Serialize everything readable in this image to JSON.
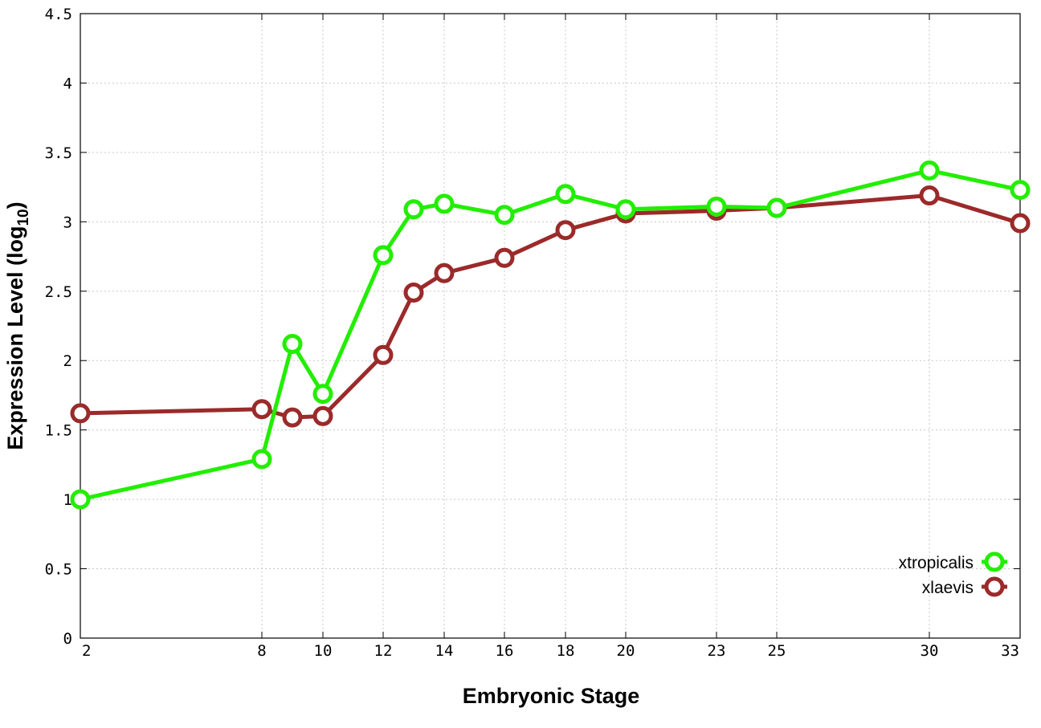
{
  "chart_data": {
    "type": "line",
    "xlabel": "Embryonic Stage",
    "ylabel_main": "Expression Level (log",
    "ylabel_sub": "10",
    "ylabel_close": ")",
    "x_ticks": [
      "2",
      "8",
      "10",
      "12",
      "14",
      "16",
      "18",
      "20",
      "23",
      "25",
      "30",
      "33"
    ],
    "y_ticks": [
      "0",
      "0.5",
      "1",
      "1.5",
      "2",
      "2.5",
      "3",
      "3.5",
      "4",
      "4.5"
    ],
    "ylim": [
      0,
      4.5
    ],
    "grid": true,
    "legend_position": "bottom-right",
    "series": [
      {
        "name": "xtropicalis",
        "color": "#22ee00",
        "points": [
          {
            "x": "2",
            "y": 1.0
          },
          {
            "x": "8",
            "y": 1.29
          },
          {
            "x": "9",
            "y": 2.12
          },
          {
            "x": "10",
            "y": 1.76
          },
          {
            "x": "12",
            "y": 2.76
          },
          {
            "x": "13",
            "y": 3.09
          },
          {
            "x": "14",
            "y": 3.13
          },
          {
            "x": "16",
            "y": 3.05
          },
          {
            "x": "18",
            "y": 3.2
          },
          {
            "x": "20",
            "y": 3.09
          },
          {
            "x": "23",
            "y": 3.11
          },
          {
            "x": "25",
            "y": 3.1
          },
          {
            "x": "30",
            "y": 3.37
          },
          {
            "x": "33",
            "y": 3.23
          }
        ]
      },
      {
        "name": "xlaevis",
        "color": "#9b2a2a",
        "points": [
          {
            "x": "2",
            "y": 1.62
          },
          {
            "x": "8",
            "y": 1.65
          },
          {
            "x": "9",
            "y": 1.59
          },
          {
            "x": "10",
            "y": 1.6
          },
          {
            "x": "12",
            "y": 2.04
          },
          {
            "x": "13",
            "y": 2.49
          },
          {
            "x": "14",
            "y": 2.63
          },
          {
            "x": "16",
            "y": 2.74
          },
          {
            "x": "18",
            "y": 2.94
          },
          {
            "x": "20",
            "y": 3.06
          },
          {
            "x": "23",
            "y": 3.08
          },
          {
            "x": "25",
            "y": 3.1
          },
          {
            "x": "30",
            "y": 3.19
          },
          {
            "x": "33",
            "y": 2.99
          }
        ]
      }
    ]
  }
}
